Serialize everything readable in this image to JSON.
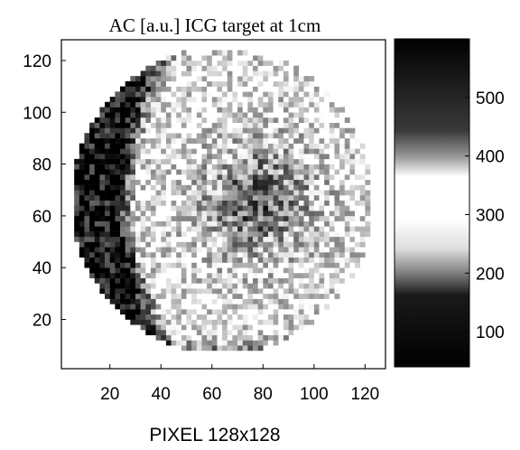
{
  "chart_data": {
    "type": "heatmap",
    "title": "AC [a.u.] ICG target at 1cm",
    "xlabel": "PIXEL 128x128",
    "ylabel": "",
    "xlim": [
      1,
      128
    ],
    "ylim": [
      1,
      128
    ],
    "x_ticks": [
      "20",
      "40",
      "60",
      "80",
      "100",
      "120"
    ],
    "y_ticks": [
      "20",
      "40",
      "60",
      "80",
      "100",
      "120"
    ],
    "colorbar": {
      "range": [
        40,
        600
      ],
      "ticks": [
        "100",
        "200",
        "300",
        "400",
        "500"
      ],
      "colormap": "grayscale: dark at low and high, white near 350"
    },
    "grid": false
  }
}
